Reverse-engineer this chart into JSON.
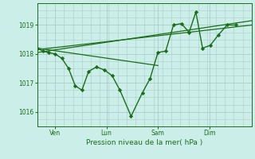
{
  "background_color": "#cceee8",
  "grid_color": "#aacccc",
  "line_color": "#1a6e1a",
  "marker_color": "#1a6e1a",
  "xlabel": "Pression niveau de la mer( hPa )",
  "ylim": [
    1015.5,
    1019.75
  ],
  "yticks": [
    1016,
    1017,
    1018,
    1019
  ],
  "x_tick_labels": [
    "Ven",
    "Lun",
    "Sam",
    "Dim"
  ],
  "x_tick_positions": [
    16,
    62,
    108,
    154
  ],
  "xlim": [
    0,
    192
  ],
  "main_series_x": [
    0,
    5,
    10,
    16,
    22,
    28,
    34,
    40,
    46,
    53,
    60,
    67,
    74,
    84,
    94,
    101,
    108,
    115,
    122,
    129,
    136,
    142,
    148,
    155,
    162,
    170,
    178
  ],
  "main_series_y": [
    1018.2,
    1018.1,
    1018.05,
    1018.0,
    1017.85,
    1017.5,
    1016.9,
    1016.75,
    1017.4,
    1017.55,
    1017.45,
    1017.25,
    1016.75,
    1015.85,
    1016.65,
    1017.15,
    1018.05,
    1018.1,
    1019.0,
    1019.05,
    1018.75,
    1019.45,
    1018.2,
    1018.3,
    1018.65,
    1019.0,
    1019.0
  ],
  "trend1_x": [
    0,
    192
  ],
  "trend1_y": [
    1018.15,
    1019.0
  ],
  "trend2_x": [
    0,
    192
  ],
  "trend2_y": [
    1018.05,
    1019.15
  ],
  "trend3_x": [
    0,
    108
  ],
  "trend3_y": [
    1018.2,
    1017.6
  ]
}
